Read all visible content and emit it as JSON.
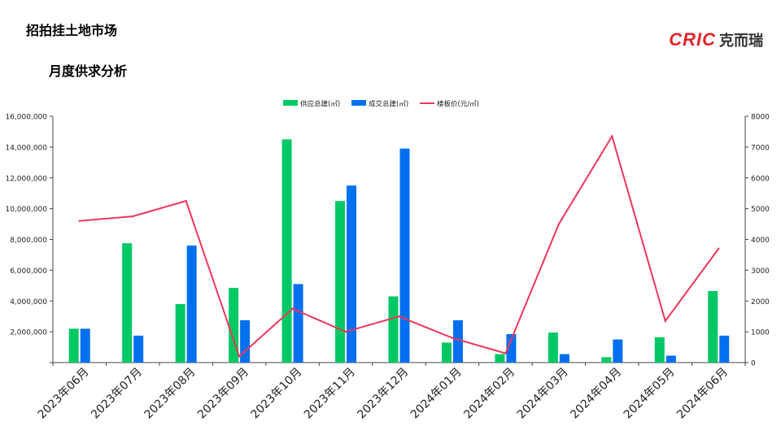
{
  "header": {
    "title": "招拍挂土地市场",
    "subtitle": "月度供求分析"
  },
  "logo": {
    "mark": "CRIC",
    "name": "克而瑞",
    "color": "#e0242b"
  },
  "chart_data": {
    "type": "bar",
    "categories": [
      "2023年06月",
      "2023年07月",
      "2023年08月",
      "2023年09月",
      "2023年10月",
      "2023年11月",
      "2023年12月",
      "2024年01月",
      "2024年02月",
      "2024年03月",
      "2024年04月",
      "2024年05月",
      "2024年06月"
    ],
    "series": [
      {
        "name": "供应总建(㎡)",
        "type": "bar",
        "axis": "left",
        "color": "#00c864",
        "values": [
          2200000,
          7750000,
          3800000,
          4850000,
          14500000,
          10500000,
          4300000,
          1300000,
          550000,
          1950000,
          350000,
          1650000,
          4650000
        ]
      },
      {
        "name": "成交总建(㎡)",
        "type": "bar",
        "axis": "left",
        "color": "#0070f0",
        "values": [
          2200000,
          1750000,
          7600000,
          2750000,
          5100000,
          11500000,
          13900000,
          2750000,
          1850000,
          550000,
          1500000,
          450000,
          1750000
        ]
      },
      {
        "name": "楼板价(元/㎡)",
        "type": "line",
        "axis": "right",
        "color": "#f0365a",
        "values": [
          4600,
          4750,
          5250,
          200,
          1750,
          1000,
          1500,
          800,
          300,
          4500,
          7350,
          1350,
          3700
        ]
      }
    ],
    "y_left": {
      "min": 0,
      "max": 16000000,
      "ticks": [
        "",
        "2,000,000",
        "4,000,000",
        "6,000,000",
        "8,000,000",
        "10,000,000",
        "12,000,000",
        "14,000,000",
        "16,000,000"
      ]
    },
    "y_right": {
      "min": 0,
      "max": 8000,
      "ticks": [
        "0",
        "1000",
        "2000",
        "3000",
        "4000",
        "5000",
        "6000",
        "7000",
        "8000"
      ]
    },
    "legend": "top-center",
    "grid": false
  }
}
